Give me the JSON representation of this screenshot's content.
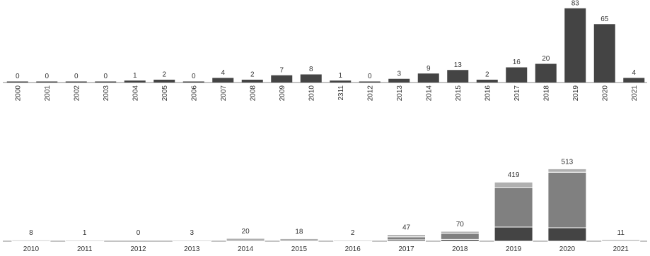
{
  "colors": {
    "dark": "#444444",
    "mid": "#808080",
    "light": "#b0b0b0",
    "axis": "#888888",
    "text": "#333333"
  },
  "chart_data": [
    {
      "type": "bar",
      "categories": [
        "2000",
        "2001",
        "2002",
        "2003",
        "2004",
        "2005",
        "2006",
        "2007",
        "2008",
        "2009",
        "2010",
        "2311",
        "2012",
        "2013",
        "2014",
        "2015",
        "2016",
        "2017",
        "2018",
        "2019",
        "2020",
        "2021"
      ],
      "values": [
        0,
        0,
        0,
        0,
        1,
        2,
        0,
        4,
        2,
        7,
        8,
        1,
        0,
        3,
        9,
        13,
        2,
        16,
        20,
        83,
        65,
        4
      ],
      "value_labels": [
        "0",
        "0",
        "0",
        "0",
        "1",
        "2",
        "0",
        "4",
        "2",
        "7",
        "8",
        "1",
        "0",
        "3",
        "9",
        "13",
        "2",
        "16",
        "20",
        "83",
        "65",
        "4"
      ],
      "tick_label_orientation": "vertical",
      "grid": false,
      "legend": "none"
    },
    {
      "type": "bar",
      "stacked": true,
      "categories": [
        "2010",
        "2011",
        "2012",
        "2013",
        "2014",
        "2015",
        "2016",
        "2017",
        "2018",
        "2019",
        "2020",
        "2021"
      ],
      "totals": [
        8,
        1,
        0,
        3,
        20,
        18,
        2,
        47,
        70,
        419,
        513,
        11
      ],
      "value_labels": [
        "8",
        "1",
        "0",
        "3",
        "20",
        "18",
        "2",
        "47",
        "70",
        "419",
        "513",
        "11"
      ],
      "series": [
        {
          "values": [
            0,
            0,
            0,
            0,
            0,
            0,
            0,
            10,
            13,
            100,
            95,
            0
          ]
        },
        {
          "values": [
            0,
            0,
            0,
            0,
            0,
            0,
            0,
            21,
            42,
            282,
            394,
            0
          ]
        },
        {
          "values": [
            8,
            1,
            0,
            3,
            20,
            18,
            2,
            16,
            15,
            37,
            24,
            11
          ]
        }
      ],
      "tick_label_orientation": "horizontal",
      "grid": false,
      "legend": "none"
    }
  ]
}
